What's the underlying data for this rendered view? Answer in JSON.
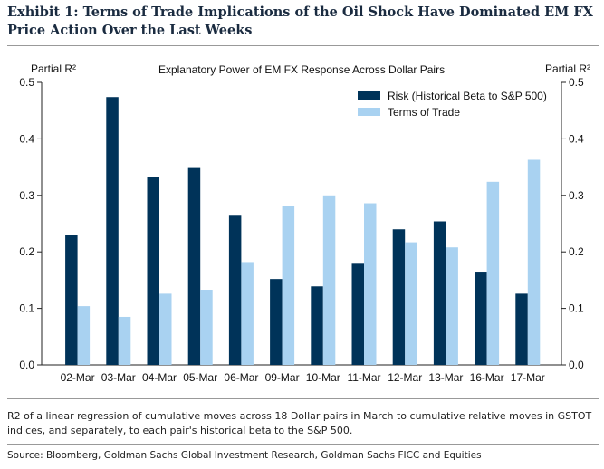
{
  "header": {
    "title": "Exhibit 1: Terms of Trade Implications of the Oil Shock Have Dominated EM FX Price Action Over the Last Weeks"
  },
  "footer": {
    "note": "R2 of a linear regression of cumulative moves across 18 Dollar pairs in March to cumulative relative moves in GSTOT indices, and separately, to each pair's historical beta to the S&P 500.",
    "source": "Source: Bloomberg, Goldman Sachs Global Investment Research, Goldman Sachs FICC and Equities"
  },
  "colors": {
    "risk": "#003359",
    "tot": "#a9d2f1"
  },
  "chart_data": {
    "type": "bar",
    "title": "Explanatory Power of EM FX Response Across Dollar Pairs",
    "ylabel": "Partial R²",
    "ylabel_right": "Partial R²",
    "ylim": [
      0,
      0.5
    ],
    "yticks": [
      "0.0",
      "0.1",
      "0.2",
      "0.3",
      "0.4",
      "0.5"
    ],
    "legend_position": "top-right",
    "categories": [
      "02-Mar",
      "03-Mar",
      "04-Mar",
      "05-Mar",
      "06-Mar",
      "09-Mar",
      "10-Mar",
      "11-Mar",
      "12-Mar",
      "13-Mar",
      "16-Mar",
      "17-Mar"
    ],
    "series": [
      {
        "name": "Risk (Historical Beta to S&P 500)",
        "values": [
          0.23,
          0.474,
          0.332,
          0.35,
          0.264,
          0.152,
          0.139,
          0.179,
          0.24,
          0.254,
          0.165,
          0.126
        ]
      },
      {
        "name": "Terms of Trade",
        "values": [
          0.104,
          0.085,
          0.126,
          0.133,
          0.182,
          0.281,
          0.3,
          0.286,
          0.217,
          0.208,
          0.324,
          0.363
        ]
      }
    ]
  }
}
